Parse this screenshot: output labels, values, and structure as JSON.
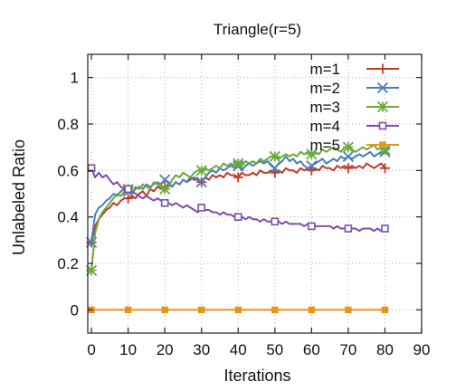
{
  "chart_data": {
    "type": "line",
    "title": "Triangle(r=5)",
    "xlabel": "Iterations",
    "ylabel": "Unlabeled Ratio",
    "xlim": [
      -1,
      90
    ],
    "ylim": [
      -0.1,
      1.1
    ],
    "xticks": [
      "0",
      "10",
      "20",
      "30",
      "40",
      "50",
      "60",
      "70",
      "80",
      "90"
    ],
    "yticks": [
      "0",
      "0.2",
      "0.4",
      "0.6",
      "0.8",
      "1"
    ],
    "grid": true,
    "legend_position": "top-right",
    "series": [
      {
        "name": "m=1",
        "color": "#c0392b",
        "marker": "plus",
        "marker_every": 10,
        "x": [
          0,
          1,
          2,
          3,
          4,
          5,
          6,
          7,
          8,
          9,
          10,
          11,
          12,
          13,
          14,
          15,
          16,
          17,
          18,
          19,
          20,
          21,
          22,
          23,
          24,
          25,
          26,
          27,
          28,
          29,
          30,
          31,
          32,
          33,
          34,
          35,
          36,
          37,
          38,
          39,
          40,
          41,
          42,
          43,
          44,
          45,
          46,
          47,
          48,
          49,
          50,
          51,
          52,
          53,
          54,
          55,
          56,
          57,
          58,
          59,
          60,
          61,
          62,
          63,
          64,
          65,
          66,
          67,
          68,
          69,
          70,
          71,
          72,
          73,
          74,
          75,
          76,
          77,
          78,
          79,
          80
        ],
        "y": [
          0.29,
          0.36,
          0.39,
          0.41,
          0.43,
          0.44,
          0.46,
          0.45,
          0.47,
          0.48,
          0.48,
          0.49,
          0.48,
          0.5,
          0.51,
          0.49,
          0.52,
          0.51,
          0.53,
          0.52,
          0.53,
          0.54,
          0.53,
          0.55,
          0.54,
          0.56,
          0.55,
          0.57,
          0.56,
          0.56,
          0.55,
          0.57,
          0.56,
          0.58,
          0.57,
          0.58,
          0.57,
          0.59,
          0.58,
          0.58,
          0.57,
          0.59,
          0.58,
          0.58,
          0.59,
          0.58,
          0.6,
          0.59,
          0.59,
          0.6,
          0.59,
          0.6,
          0.59,
          0.61,
          0.6,
          0.6,
          0.59,
          0.61,
          0.6,
          0.61,
          0.6,
          0.61,
          0.6,
          0.62,
          0.61,
          0.61,
          0.6,
          0.62,
          0.61,
          0.62,
          0.61,
          0.62,
          0.61,
          0.62,
          0.61,
          0.63,
          0.62,
          0.61,
          0.62,
          0.63,
          0.61
        ]
      },
      {
        "name": "m=2",
        "color": "#4a7ebb",
        "marker": "x",
        "marker_every": 10,
        "x": [
          0,
          1,
          2,
          3,
          4,
          5,
          6,
          7,
          8,
          9,
          10,
          11,
          12,
          13,
          14,
          15,
          16,
          17,
          18,
          19,
          20,
          21,
          22,
          23,
          24,
          25,
          26,
          27,
          28,
          29,
          30,
          31,
          32,
          33,
          34,
          35,
          36,
          37,
          38,
          39,
          40,
          41,
          42,
          43,
          44,
          45,
          46,
          47,
          48,
          49,
          50,
          51,
          52,
          53,
          54,
          55,
          56,
          57,
          58,
          59,
          60,
          61,
          62,
          63,
          64,
          65,
          66,
          67,
          68,
          69,
          70,
          71,
          72,
          73,
          74,
          75,
          76,
          77,
          78,
          79,
          80
        ],
        "y": [
          0.29,
          0.41,
          0.44,
          0.45,
          0.47,
          0.48,
          0.5,
          0.49,
          0.51,
          0.52,
          0.51,
          0.5,
          0.52,
          0.53,
          0.52,
          0.54,
          0.53,
          0.54,
          0.55,
          0.54,
          0.56,
          0.55,
          0.53,
          0.55,
          0.54,
          0.56,
          0.55,
          0.56,
          0.57,
          0.56,
          0.55,
          0.57,
          0.59,
          0.6,
          0.59,
          0.61,
          0.6,
          0.61,
          0.62,
          0.61,
          0.62,
          0.6,
          0.62,
          0.63,
          0.62,
          0.63,
          0.64,
          0.63,
          0.64,
          0.62,
          0.61,
          0.63,
          0.64,
          0.66,
          0.64,
          0.65,
          0.63,
          0.64,
          0.62,
          0.61,
          0.62,
          0.63,
          0.64,
          0.65,
          0.63,
          0.64,
          0.65,
          0.64,
          0.66,
          0.65,
          0.66,
          0.65,
          0.66,
          0.67,
          0.66,
          0.67,
          0.68,
          0.66,
          0.67,
          0.68,
          0.68
        ]
      },
      {
        "name": "m=3",
        "color": "#6aaa3a",
        "marker": "star",
        "marker_every": 10,
        "x": [
          0,
          1,
          2,
          3,
          4,
          5,
          6,
          7,
          8,
          9,
          10,
          11,
          12,
          13,
          14,
          15,
          16,
          17,
          18,
          19,
          20,
          21,
          22,
          23,
          24,
          25,
          26,
          27,
          28,
          29,
          30,
          31,
          32,
          33,
          34,
          35,
          36,
          37,
          38,
          39,
          40,
          41,
          42,
          43,
          44,
          45,
          46,
          47,
          48,
          49,
          50,
          51,
          52,
          53,
          54,
          55,
          56,
          57,
          58,
          59,
          60,
          61,
          62,
          63,
          64,
          65,
          66,
          67,
          68,
          69,
          70,
          71,
          72,
          73,
          74,
          75,
          76,
          77,
          78,
          79,
          80
        ],
        "y": [
          0.17,
          0.33,
          0.39,
          0.42,
          0.44,
          0.46,
          0.48,
          0.5,
          0.49,
          0.51,
          0.52,
          0.5,
          0.53,
          0.52,
          0.54,
          0.53,
          0.52,
          0.55,
          0.54,
          0.53,
          0.52,
          0.53,
          0.56,
          0.58,
          0.57,
          0.59,
          0.58,
          0.57,
          0.59,
          0.6,
          0.6,
          0.61,
          0.6,
          0.61,
          0.62,
          0.61,
          0.63,
          0.62,
          0.63,
          0.62,
          0.63,
          0.62,
          0.64,
          0.63,
          0.64,
          0.63,
          0.65,
          0.64,
          0.65,
          0.66,
          0.66,
          0.65,
          0.66,
          0.67,
          0.66,
          0.67,
          0.66,
          0.68,
          0.67,
          0.68,
          0.67,
          0.68,
          0.67,
          0.69,
          0.68,
          0.69,
          0.7,
          0.69,
          0.68,
          0.7,
          0.7,
          0.69,
          0.68,
          0.69,
          0.7,
          0.69,
          0.7,
          0.71,
          0.69,
          0.7,
          0.69
        ]
      },
      {
        "name": "m=4",
        "color": "#7b4fa6",
        "marker": "square",
        "marker_every": 10,
        "x": [
          0,
          1,
          2,
          3,
          4,
          5,
          6,
          7,
          8,
          9,
          10,
          11,
          12,
          13,
          14,
          15,
          16,
          17,
          18,
          19,
          20,
          21,
          22,
          23,
          24,
          25,
          26,
          27,
          28,
          29,
          30,
          31,
          32,
          33,
          34,
          35,
          36,
          37,
          38,
          39,
          40,
          41,
          42,
          43,
          44,
          45,
          46,
          47,
          48,
          49,
          50,
          51,
          52,
          53,
          54,
          55,
          56,
          57,
          58,
          59,
          60,
          61,
          62,
          63,
          64,
          65,
          66,
          67,
          68,
          69,
          70,
          71,
          72,
          73,
          74,
          75,
          76,
          77,
          78,
          79,
          80
        ],
        "y": [
          0.61,
          0.57,
          0.59,
          0.57,
          0.58,
          0.56,
          0.54,
          0.55,
          0.53,
          0.52,
          0.52,
          0.51,
          0.5,
          0.49,
          0.48,
          0.49,
          0.48,
          0.47,
          0.48,
          0.47,
          0.46,
          0.46,
          0.45,
          0.46,
          0.45,
          0.44,
          0.45,
          0.44,
          0.43,
          0.42,
          0.44,
          0.43,
          0.43,
          0.42,
          0.42,
          0.41,
          0.42,
          0.41,
          0.41,
          0.4,
          0.4,
          0.4,
          0.39,
          0.4,
          0.39,
          0.39,
          0.38,
          0.39,
          0.38,
          0.38,
          0.38,
          0.38,
          0.37,
          0.38,
          0.37,
          0.37,
          0.37,
          0.37,
          0.36,
          0.37,
          0.36,
          0.36,
          0.36,
          0.36,
          0.36,
          0.36,
          0.35,
          0.36,
          0.35,
          0.35,
          0.35,
          0.35,
          0.35,
          0.34,
          0.35,
          0.35,
          0.35,
          0.34,
          0.35,
          0.34,
          0.35
        ]
      },
      {
        "name": "m=5",
        "color": "#e8941a",
        "marker": "filled-square",
        "marker_every": 10,
        "x": [
          0,
          80
        ],
        "y": [
          0,
          0
        ]
      }
    ]
  }
}
